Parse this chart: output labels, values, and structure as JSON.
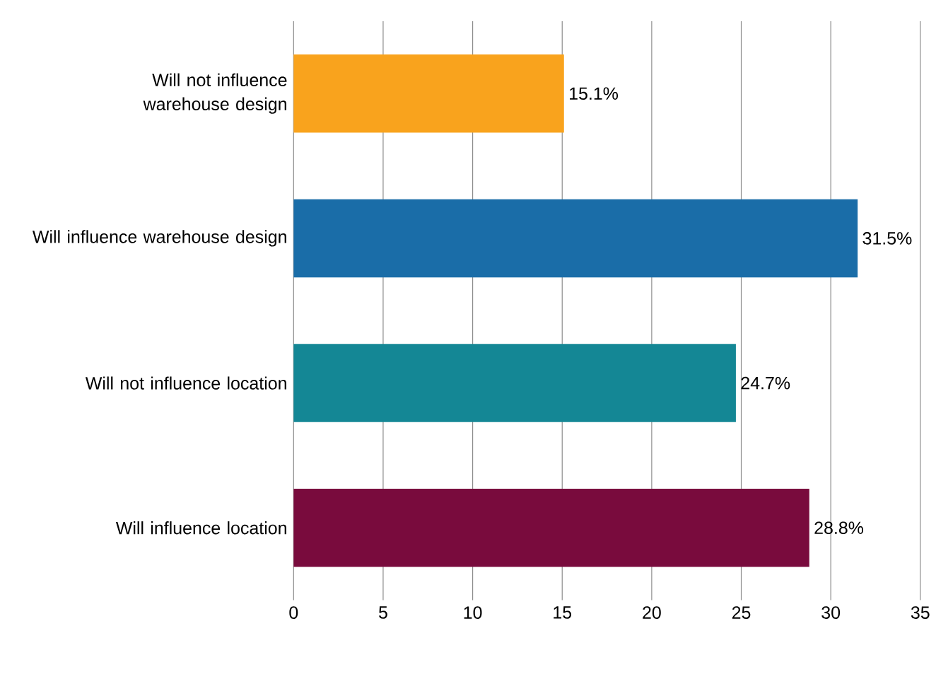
{
  "chart_data": {
    "type": "bar",
    "orientation": "horizontal",
    "categories": [
      "Will not influence warehouse design",
      "Will influence warehouse design",
      "Will not influence location",
      "Will influence location"
    ],
    "values": [
      15.1,
      31.5,
      24.7,
      28.8
    ],
    "colors": [
      "#f9a31d",
      "#1a6da8",
      "#148795",
      "#790b3d"
    ],
    "value_labels": [
      "15.1%",
      "31.5%",
      "24.7%",
      "28.8%"
    ],
    "xlim": [
      0,
      35
    ],
    "xticks": [
      0,
      5,
      10,
      15,
      20,
      25,
      30,
      35
    ],
    "grid": "x"
  }
}
